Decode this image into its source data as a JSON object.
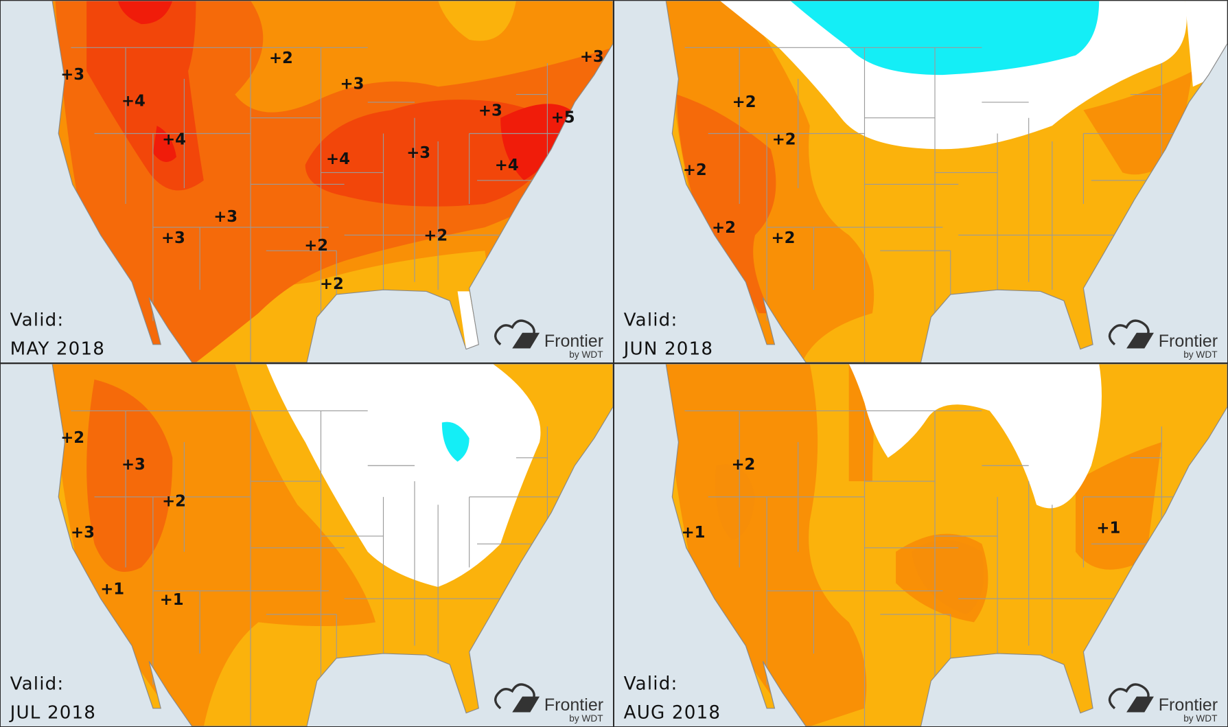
{
  "colors": {
    "ocean": "#dbe5ec",
    "anomaly_plus1": "#fbb20c",
    "anomaly_plus2": "#f99006",
    "anomaly_plus3": "#f56a0a",
    "anomaly_plus4": "#f2460a",
    "anomaly_plus5": "#f01c0a",
    "near_normal": "#ffffff",
    "below_normal": "#14eef6",
    "state_lines": "#9a9a9a"
  },
  "logo": {
    "name": "Frontier",
    "sub": "by WDT"
  },
  "panels": [
    {
      "valid_label": "Valid:",
      "month": "MAY 2018",
      "anomalies": [
        "+3",
        "+4",
        "+4",
        "+2",
        "+3",
        "+4",
        "+3",
        "+3",
        "+5",
        "+4",
        "+3",
        "+3",
        "+3",
        "+2",
        "+2",
        "+2"
      ]
    },
    {
      "valid_label": "Valid:",
      "month": "JUN 2018",
      "anomalies": [
        "+2",
        "+2",
        "+2",
        "+2",
        "+2"
      ]
    },
    {
      "valid_label": "Valid:",
      "month": "JUL 2018",
      "anomalies": [
        "+2",
        "+3",
        "+2",
        "+3",
        "+1",
        "+1"
      ]
    },
    {
      "valid_label": "Valid:",
      "month": "AUG 2018",
      "anomalies": [
        "+2",
        "+1",
        "+1"
      ]
    }
  ]
}
